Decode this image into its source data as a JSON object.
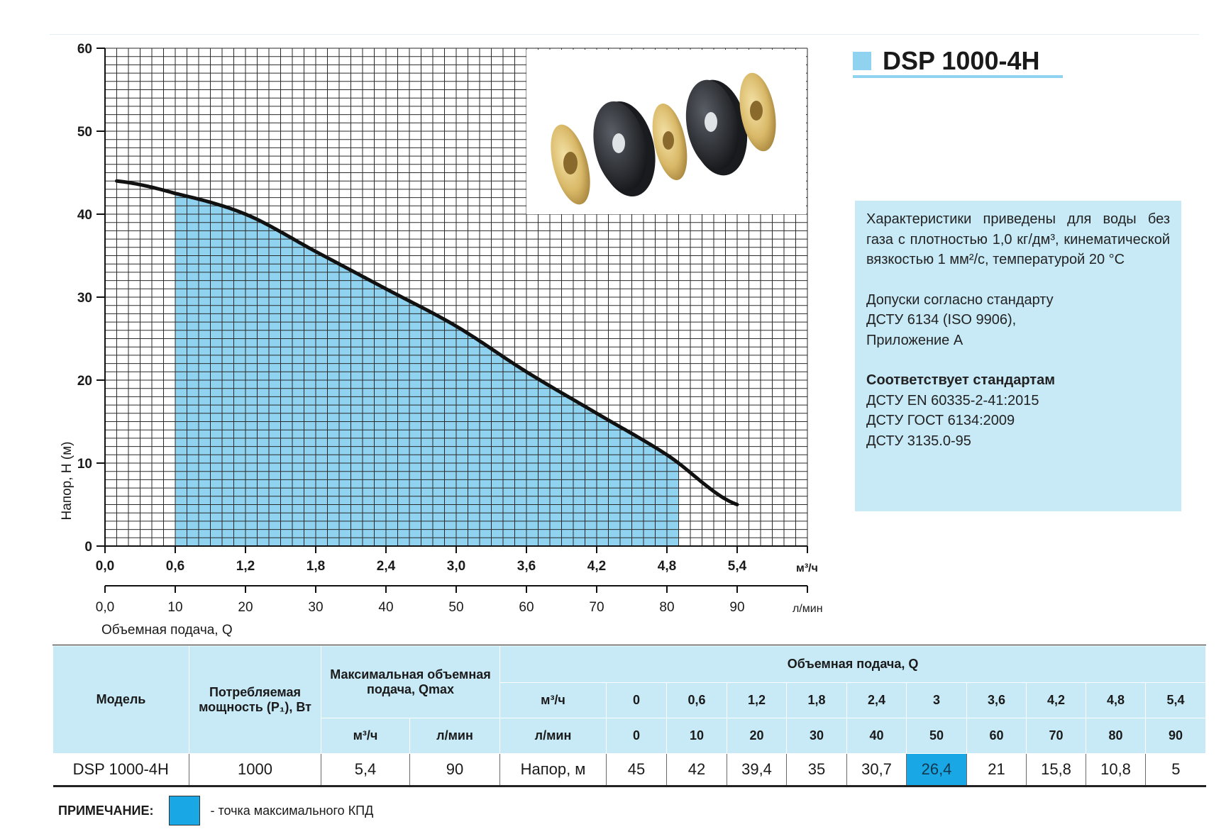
{
  "model_title": "DSP 1000-4H",
  "colors": {
    "accent": "#8fd3f0",
    "fill_area": "#8fd3f0",
    "efficiency_point": "#1aa7e6",
    "info_bg": "#c8eaf7",
    "curve": "#111111"
  },
  "chart_data": {
    "type": "line",
    "y_axis": {
      "label": "Напор, H (м)",
      "ticks": [
        "0",
        "10",
        "20",
        "30",
        "40",
        "50",
        "60"
      ],
      "range": [
        0,
        60
      ]
    },
    "x_axis_primary": {
      "unit": "м³/ч",
      "ticks": [
        "0,0",
        "0,6",
        "1,2",
        "1,8",
        "2,4",
        "3,0",
        "3,6",
        "4,2",
        "4,8",
        "5,4"
      ],
      "range": [
        0,
        6
      ]
    },
    "x_axis_secondary": {
      "label": "Объемная подача, Q",
      "unit": "л/мин",
      "ticks": [
        "0,0",
        "10",
        "20",
        "30",
        "40",
        "50",
        "60",
        "70",
        "80",
        "90"
      ],
      "range": [
        0,
        100
      ]
    },
    "grid": true,
    "x": [
      0.1,
      0.6,
      1.2,
      1.8,
      2.4,
      3.0,
      3.6,
      4.2,
      4.8,
      5.4
    ],
    "y": [
      44,
      42.5,
      40,
      35.5,
      31,
      26.5,
      21,
      16,
      11,
      5
    ],
    "shaded_range": [
      0.6,
      4.9
    ]
  },
  "info": {
    "conditions": "Характеристики приведены для воды без газа с плотностью 1,0 кг/дм³, кинематической вязкостью 1 мм²/с, температурой 20 °C",
    "tolerance_lines": [
      "Допуски согласно стандарту",
      "ДСТУ 6134 (ISO 9906),",
      "Приложение А"
    ],
    "standards_heading": "Соответствует стандартам",
    "standards": [
      "ДСТУ EN 60335-2-41:2015",
      "ДСТУ ГОСТ 6134:2009",
      "ДСТУ 3135.0-95"
    ]
  },
  "table": {
    "headers": {
      "model": "Модель",
      "power": "Потребляемая мощность (P₁), Вт",
      "qmax": "Максимальная объемная подача, Qmax",
      "qmax_unit1": "м³/ч",
      "qmax_unit2": "л/мин",
      "flow": "Объемная подача, Q",
      "flow_unit1": "м³/ч",
      "flow_unit2": "л/мин"
    },
    "flow_m3h": [
      "0",
      "0,6",
      "1,2",
      "1,8",
      "2,4",
      "3",
      "3,6",
      "4,2",
      "4,8",
      "5,4"
    ],
    "flow_lmin": [
      "0",
      "10",
      "20",
      "30",
      "40",
      "50",
      "60",
      "70",
      "80",
      "90"
    ],
    "row": {
      "model": "DSP 1000-4H",
      "power": "1000",
      "qmax_m3h": "5,4",
      "qmax_lmin": "90",
      "head_label": "Напор, м",
      "heads": [
        "45",
        "42",
        "39,4",
        "35",
        "30,7",
        "26,4",
        "21",
        "15,8",
        "10,8",
        "5"
      ]
    },
    "highlight_index": 5
  },
  "note": {
    "label": "ПРИМЕЧАНИЕ:",
    "text": "- точка максимального КПД"
  }
}
